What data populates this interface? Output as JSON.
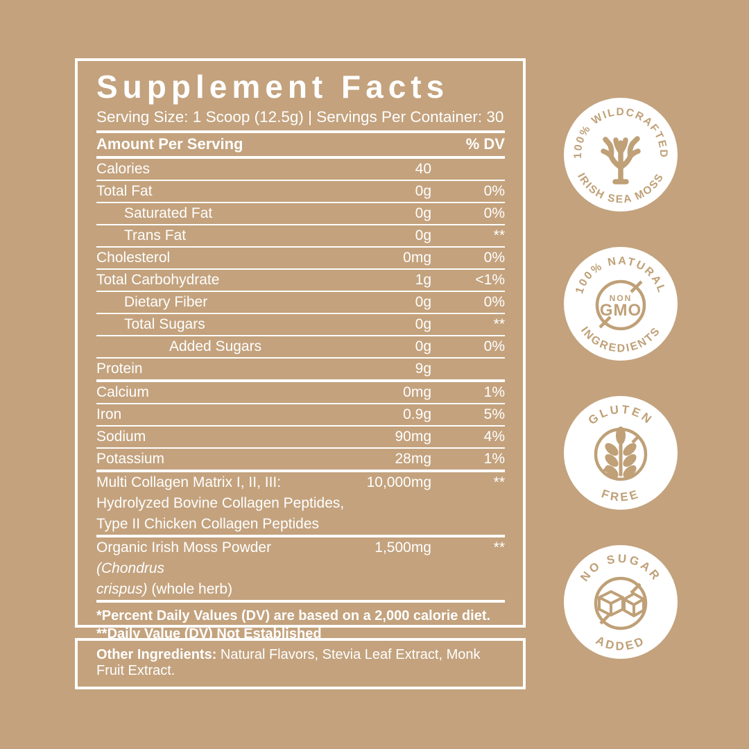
{
  "colors": {
    "background": "#C3A27D",
    "text": "#FFFFFF",
    "badge_art": "#BFA077"
  },
  "panel": {
    "title": "Supplement Facts",
    "serving_line": "Serving Size:  1 Scoop (12.5g) | Servings Per Container: 30",
    "header": {
      "left": "Amount Per Serving",
      "right": "% DV"
    },
    "rows": [
      {
        "label": "Calories",
        "indent": 0,
        "amount": "40",
        "dv": "",
        "rule": "thin"
      },
      {
        "label": "Total Fat",
        "indent": 0,
        "amount": "0g",
        "dv": "0%",
        "rule": "thin"
      },
      {
        "label": "Saturated Fat",
        "indent": 1,
        "amount": "0g",
        "dv": "0%",
        "rule": "thin"
      },
      {
        "label": "Trans Fat",
        "indent": 1,
        "amount": "0g",
        "dv": "**",
        "rule": "thin"
      },
      {
        "label": "Cholesterol",
        "indent": 0,
        "amount": "0mg",
        "dv": "0%",
        "rule": "thin"
      },
      {
        "label": "Total Carbohydrate",
        "indent": 0,
        "amount": "1g",
        "dv": "<1%",
        "rule": "thin"
      },
      {
        "label": "Dietary Fiber",
        "indent": 1,
        "amount": "0g",
        "dv": "0%",
        "rule": "thin"
      },
      {
        "label": "Total Sugars",
        "indent": 1,
        "amount": "0g",
        "dv": "**",
        "rule": "thin"
      },
      {
        "label": "Added Sugars",
        "indent": 2,
        "amount": "0g",
        "dv": "0%",
        "rule": "thin"
      },
      {
        "label": "Protein",
        "indent": 0,
        "amount": "9g",
        "dv": "",
        "rule": "thick"
      },
      {
        "label": "Calcium",
        "indent": 0,
        "amount": "0mg",
        "dv": "1%",
        "rule": "thin"
      },
      {
        "label": "Iron",
        "indent": 0,
        "amount": "0.9g",
        "dv": "5%",
        "rule": "thin"
      },
      {
        "label": "Sodium",
        "indent": 0,
        "amount": "90mg",
        "dv": "4%",
        "rule": "thin"
      },
      {
        "label": "Potassium",
        "indent": 0,
        "amount": "28mg",
        "dv": "1%",
        "rule": "thick"
      },
      {
        "label": "Multi Collagen Matrix I, II, III:",
        "indent": 0,
        "amount": "10,000mg",
        "dv": "**",
        "rule": "thick",
        "extra_lines": [
          [
            {
              "t": "Hydrolyzed Bovine Collagen Peptides,",
              "s": "r"
            }
          ],
          [
            {
              "t": "Type II Chicken Collagen Peptides",
              "s": "r"
            }
          ]
        ]
      },
      {
        "label_runs": [
          {
            "t": "Organic Irish Moss Powder ",
            "s": "r"
          },
          {
            "t": "(Chondrus",
            "s": "i"
          }
        ],
        "indent": 0,
        "amount": "1,500mg",
        "dv": "**",
        "rule": "thick",
        "extra_lines": [
          [
            {
              "t": "crispus)",
              "s": "i"
            },
            {
              "t": " (whole herb)",
              "s": "r"
            }
          ]
        ]
      }
    ],
    "footnotes": [
      "*Percent Daily Values (DV) are based on a 2,000 calorie diet.",
      "**Daily Value (DV) Not Established"
    ]
  },
  "other_ingredients": {
    "label": "Other Ingredients:",
    "text": "  Natural Flavors, Stevia Leaf Extract, Monk Fruit Extract."
  },
  "badges": [
    {
      "top": "100% WILDCRAFTED",
      "bottom": "IRISH SEA MOSS",
      "icon": "sea-moss-icon"
    },
    {
      "top": "100% NATURAL",
      "bottom": "INGREDIENTS",
      "icon": "non-gmo-icon",
      "center_lines": [
        "NON",
        "GMO"
      ]
    },
    {
      "top": "GLUTEN",
      "bottom": "FREE",
      "icon": "wheat-crossed-icon"
    },
    {
      "top": "NO SUGAR",
      "bottom": "ADDED",
      "icon": "sugar-cube-crossed-icon"
    }
  ]
}
